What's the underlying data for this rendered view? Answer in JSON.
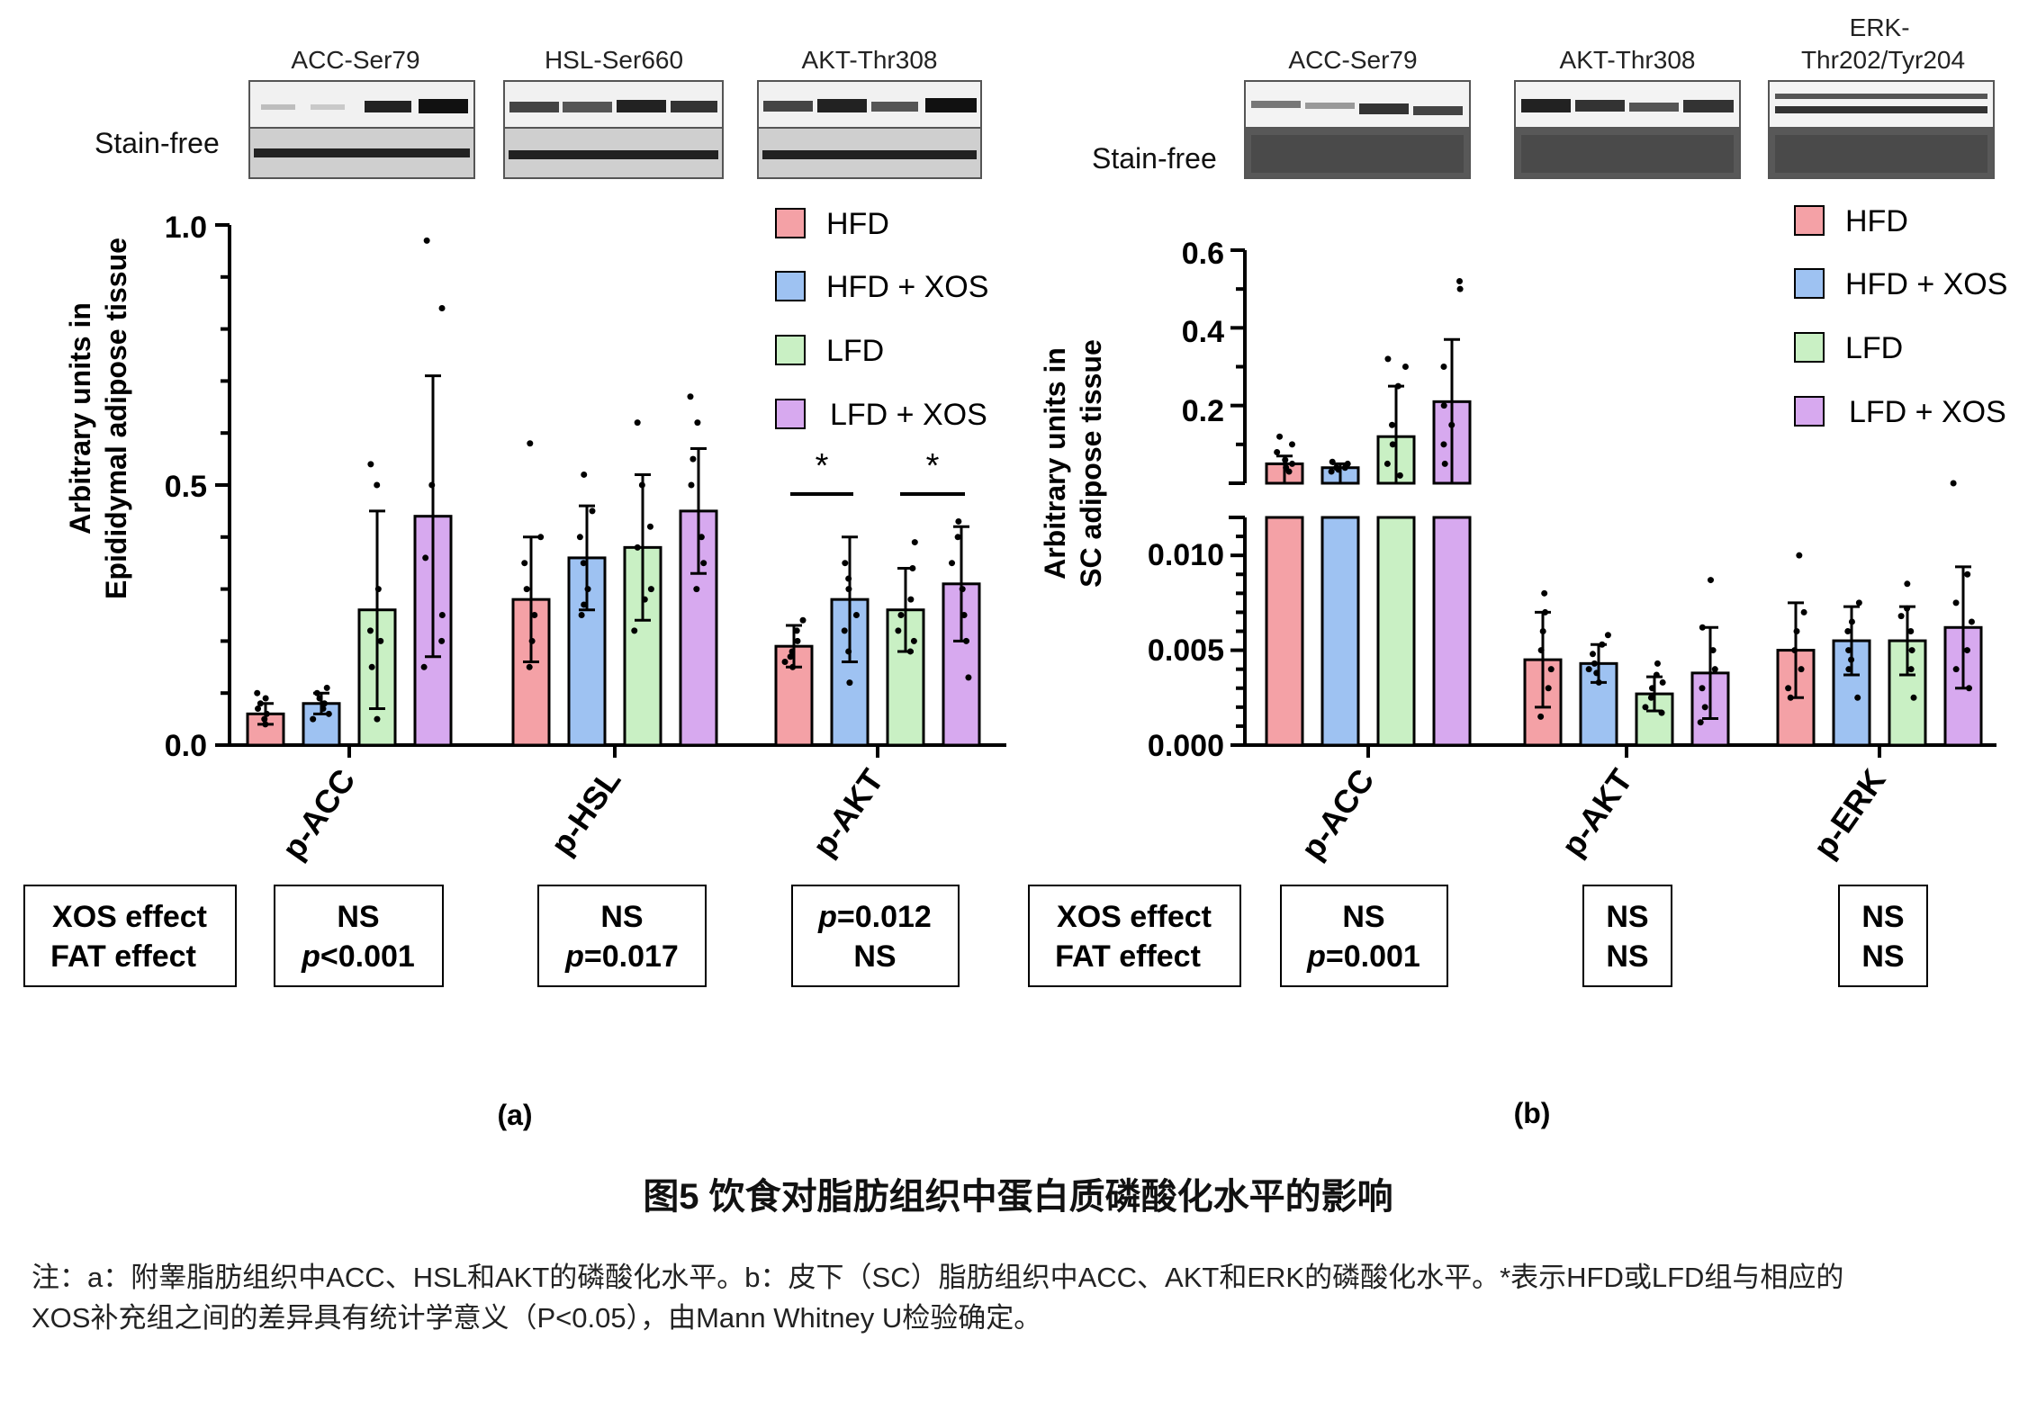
{
  "legend": [
    "HFD",
    "HFD + XOS",
    "LFD",
    "LFD + XOS"
  ],
  "colors": {
    "HFD": "#f4a1a6",
    "HFD + XOS": "#9ec2f2",
    "LFD": "#c9f0c4",
    "LFD + XOS": "#d7a9ef",
    "axis": "#000000"
  },
  "blot_label": "Stain-free",
  "panel_a": {
    "label": "(a)",
    "ylabel_lines": [
      "Arbitrary units in",
      "Epididymal adipose tissue"
    ],
    "yticks": [
      "0.0",
      "0.5",
      "1.0"
    ],
    "blot_titles": [
      "ACC-Ser79",
      "HSL-Ser660",
      "AKT-Thr308"
    ],
    "significance": [
      "*",
      "*"
    ],
    "effect_labels": [
      "XOS effect",
      "FAT effect"
    ],
    "effects": [
      {
        "xos": "NS",
        "fat": "p<0.001"
      },
      {
        "xos": "NS",
        "fat": "p=0.017"
      },
      {
        "xos": "p=0.012",
        "fat": "NS"
      }
    ]
  },
  "panel_b": {
    "label": "(b)",
    "ylabel_lines": [
      "Arbitrary units in",
      "SC adipose tissue"
    ],
    "yticks_upper": [
      "0.2",
      "0.4",
      "0.6"
    ],
    "yticks_lower": [
      "0.000",
      "0.005",
      "0.010"
    ],
    "blot_titles": [
      "ACC-Ser79",
      "AKT-Thr308",
      "ERK-\nThr202/Tyr204"
    ],
    "effect_labels": [
      "XOS effect",
      "FAT effect"
    ],
    "effects": [
      {
        "xos": "NS",
        "fat": "p=0.001"
      },
      {
        "xos": "NS",
        "fat": "NS"
      },
      {
        "xos": "NS",
        "fat": "NS"
      }
    ]
  },
  "caption": {
    "title": "图5 饮食对脂肪组织中蛋白质磷酸化水平的影响",
    "note_line1": "注：a：附睾脂肪组织中ACC、HSL和AKT的磷酸化水平。b：皮下（SC）脂肪组织中ACC、AKT和ERK的磷酸化水平。*表示HFD或LFD组与相应的",
    "note_line2": "XOS补充组之间的差异具有统计学意义（P<0.05），由Mann Whitney U检验确定。"
  },
  "chart_data": [
    {
      "type": "bar",
      "title": "",
      "ylabel": "Arbitrary units in Epididymal adipose tissue",
      "ylim": [
        0,
        1.0
      ],
      "categories": [
        "p-ACC",
        "p-HSL",
        "p-AKT"
      ],
      "series": [
        {
          "name": "HFD",
          "values": [
            0.06,
            0.28,
            0.19
          ],
          "sd": [
            0.02,
            0.12,
            0.04
          ],
          "points": [
            [
              0.04,
              0.06,
              0.07,
              0.08,
              0.05,
              0.09,
              0.1
            ],
            [
              0.15,
              0.2,
              0.25,
              0.3,
              0.35,
              0.4,
              0.58
            ],
            [
              0.16,
              0.18,
              0.2,
              0.22,
              0.24,
              0.17,
              0.15
            ]
          ]
        },
        {
          "name": "HFD + XOS",
          "values": [
            0.08,
            0.36,
            0.28
          ],
          "sd": [
            0.02,
            0.1,
            0.12
          ],
          "points": [
            [
              0.06,
              0.07,
              0.09,
              0.1,
              0.11,
              0.08,
              0.05
            ],
            [
              0.25,
              0.3,
              0.35,
              0.4,
              0.45,
              0.52,
              0.27
            ],
            [
              0.12,
              0.18,
              0.25,
              0.3,
              0.32,
              0.35,
              0.22
            ]
          ]
        },
        {
          "name": "LFD",
          "values": [
            0.26,
            0.38,
            0.26
          ],
          "sd": [
            0.19,
            0.14,
            0.08
          ],
          "points": [
            [
              0.05,
              0.15,
              0.2,
              0.22,
              0.3,
              0.5,
              0.54
            ],
            [
              0.22,
              0.3,
              0.38,
              0.42,
              0.5,
              0.62,
              0.28
            ],
            [
              0.18,
              0.22,
              0.25,
              0.28,
              0.34,
              0.39,
              0.2
            ]
          ]
        },
        {
          "name": "LFD + XOS",
          "values": [
            0.44,
            0.45,
            0.31
          ],
          "sd": [
            0.27,
            0.12,
            0.11
          ],
          "points": [
            [
              0.15,
              0.2,
              0.25,
              0.36,
              0.5,
              0.84,
              0.97
            ],
            [
              0.3,
              0.35,
              0.4,
              0.5,
              0.55,
              0.62,
              0.67
            ],
            [
              0.13,
              0.2,
              0.25,
              0.3,
              0.35,
              0.4,
              0.43
            ]
          ]
        }
      ]
    },
    {
      "type": "bar",
      "title": "",
      "ylabel": "Arbitrary units in SC adipose tissue",
      "axis_break": true,
      "ylim_lower": [
        0,
        0.012
      ],
      "ylim_upper": [
        0.0,
        0.6
      ],
      "categories": [
        "p-ACC",
        "p-AKT",
        "p-ERK"
      ],
      "series": [
        {
          "name": "HFD",
          "values": [
            0.05,
            0.0045,
            0.005
          ],
          "sd": [
            0.02,
            0.0025,
            0.0025
          ],
          "points": [
            [
              0.03,
              0.04,
              0.05,
              0.06,
              0.08,
              0.1,
              0.12
            ],
            [
              0.0015,
              0.003,
              0.004,
              0.005,
              0.006,
              0.007,
              0.008
            ],
            [
              0.0025,
              0.003,
              0.004,
              0.005,
              0.006,
              0.007,
              0.01
            ]
          ]
        },
        {
          "name": "HFD + XOS",
          "values": [
            0.04,
            0.0043,
            0.0055
          ],
          "sd": [
            0.01,
            0.001,
            0.0018
          ],
          "points": [
            [
              0.03,
              0.035,
              0.04,
              0.045,
              0.05,
              0.055,
              0.04
            ],
            [
              0.0033,
              0.0038,
              0.0043,
              0.0048,
              0.0053,
              0.0058,
              0.004
            ],
            [
              0.0025,
              0.004,
              0.005,
              0.006,
              0.0065,
              0.0075,
              0.0045
            ]
          ]
        },
        {
          "name": "LFD",
          "values": [
            0.12,
            0.0027,
            0.0055
          ],
          "sd": [
            0.13,
            0.0009,
            0.0018
          ],
          "points": [
            [
              0.02,
              0.05,
              0.1,
              0.15,
              0.25,
              0.3,
              0.32
            ],
            [
              0.0017,
              0.002,
              0.0025,
              0.003,
              0.0033,
              0.0037,
              0.0043
            ],
            [
              0.0025,
              0.004,
              0.005,
              0.006,
              0.0068,
              0.0072,
              0.0085
            ]
          ]
        },
        {
          "name": "LFD + XOS",
          "values": [
            0.21,
            0.0038,
            0.0062
          ],
          "sd": [
            0.16,
            0.0024,
            0.0032
          ],
          "points": [
            [
              0.05,
              0.1,
              0.15,
              0.2,
              0.3,
              0.5,
              0.52
            ],
            [
              0.0012,
              0.002,
              0.003,
              0.004,
              0.005,
              0.0062,
              0.0087
            ],
            [
              0.003,
              0.004,
              0.005,
              0.0065,
              0.0075,
              0.009,
              0.0138
            ]
          ]
        }
      ]
    }
  ]
}
